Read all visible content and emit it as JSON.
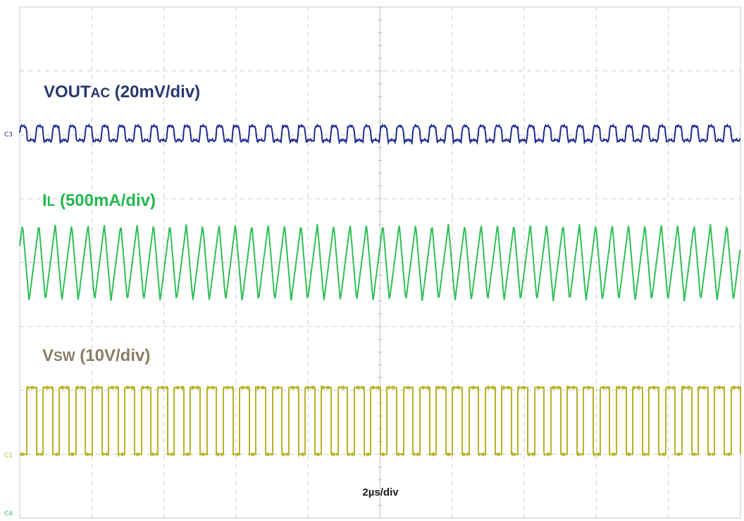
{
  "chart_data": {
    "type": "line",
    "time_div_label": "2µs/div",
    "time_per_div_us": 2,
    "divisions": {
      "x": 10,
      "y": 8
    },
    "grid": true,
    "series": [
      {
        "name_main": "VOUT",
        "name_sub": "AC",
        "scale_label": " (20mV/div)",
        "marker": "C3",
        "color": "#1f2b8f",
        "label_color": "#26386e",
        "waveform": "ripple",
        "switching_frequency_mhz": 2.2,
        "peak_to_peak_div": 0.3
      },
      {
        "name_main": "I",
        "name_sub": "L",
        "scale_label": " (500mA/div)",
        "marker": "",
        "color": "#2fbf55",
        "label_color": "#25b84e",
        "waveform": "triangle",
        "switching_frequency_mhz": 2.2,
        "peak_to_peak_div": 1.2
      },
      {
        "name_main": "V",
        "name_sub": "SW",
        "scale_label": " (10V/div)",
        "marker": "C1",
        "color": "#b8b22a",
        "label_color": "#8a7d62",
        "waveform": "square",
        "switching_frequency_mhz": 2.2,
        "duty_cycle": 0.6,
        "amplitude_div": 1.2
      },
      {
        "name_main": "",
        "marker": "C4",
        "color": "#2fbf55",
        "waveform": "none"
      }
    ]
  }
}
